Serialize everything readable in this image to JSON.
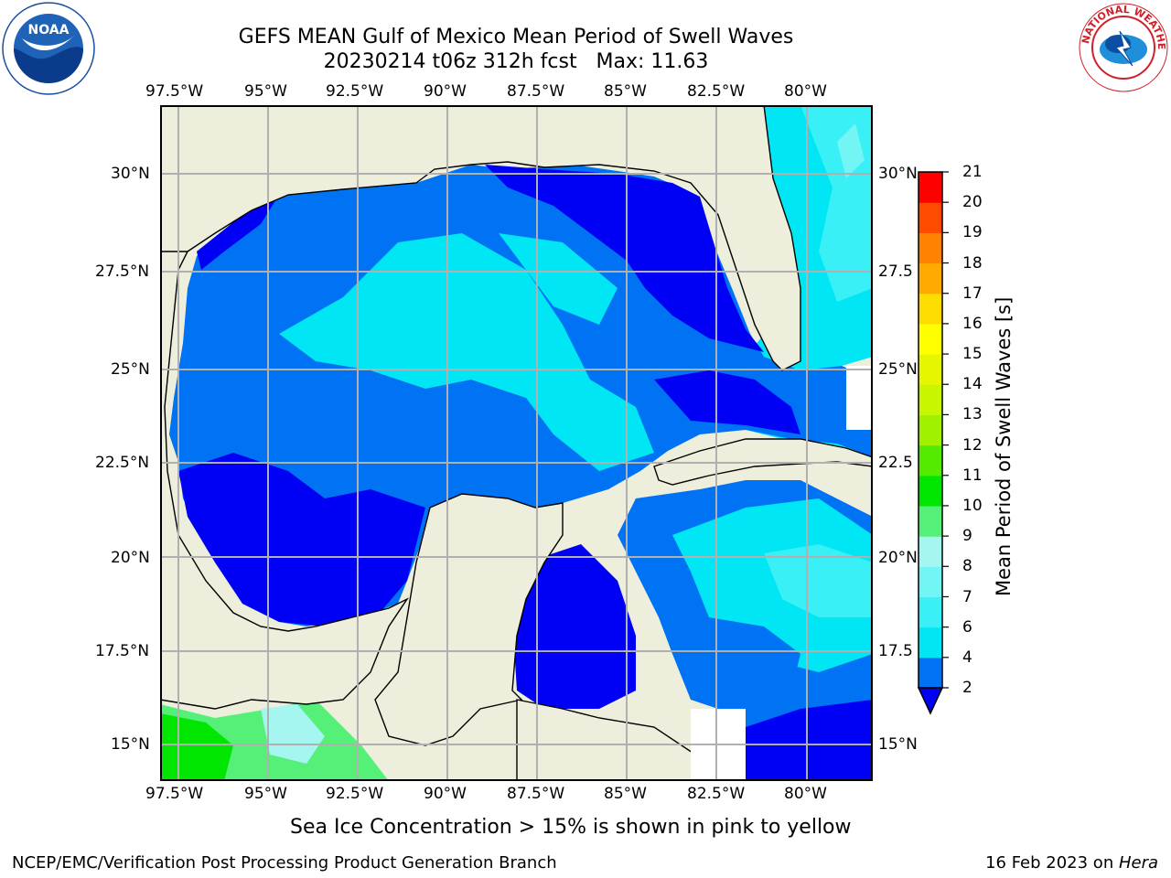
{
  "title": {
    "line1": "GEFS MEAN Gulf of Mexico Mean Period of Swell Waves",
    "line2": "20230214 t06z 312h fcst   Max: 11.63"
  },
  "map": {
    "lon_labels": [
      "97.5°W",
      "95°W",
      "92.5°W",
      "90°W",
      "87.5°W",
      "85°W",
      "82.5°W",
      "80°W"
    ],
    "lat_labels_left": [
      "30°N",
      "27.5°N",
      "25°N",
      "22.5°N",
      "20°N",
      "17.5°N",
      "15°N"
    ],
    "lat_labels_right": [
      "30°N",
      "27.5",
      "25°N",
      "22.5",
      "20°N",
      "17.5",
      "15°N"
    ],
    "land_color": "#eeeedc",
    "grid_color": "#b0b0b0"
  },
  "colorbar": {
    "label": "Mean Period of Swell Waves [s]",
    "ticks": [
      "2",
      "4",
      "6",
      "7",
      "8",
      "9",
      "10",
      "11",
      "12",
      "13",
      "14",
      "15",
      "16",
      "17",
      "18",
      "19",
      "20",
      "21"
    ],
    "colors": [
      "#0000f5",
      "#0073f5",
      "#00e6f5",
      "#38f0f5",
      "#73f5f5",
      "#a5f5f0",
      "#55f078",
      "#00e600",
      "#55eb00",
      "#a0f000",
      "#c8f500",
      "#e6f500",
      "#ffff00",
      "#ffdc00",
      "#ffaa00",
      "#ff8200",
      "#ff4b00",
      "#ff0000"
    ],
    "extend": "min"
  },
  "footer": {
    "left": "NCEP/EMC/Verification Post Processing Product Generation Branch",
    "note": "Sea Ice Concentration > 15% is shown in pink to yellow",
    "date": "16 Feb 2023 on ",
    "machine": "Hera"
  },
  "logos": {
    "noaa_text": "NOAA",
    "nws_text": "NATIONAL WEATHER SERVICE"
  }
}
